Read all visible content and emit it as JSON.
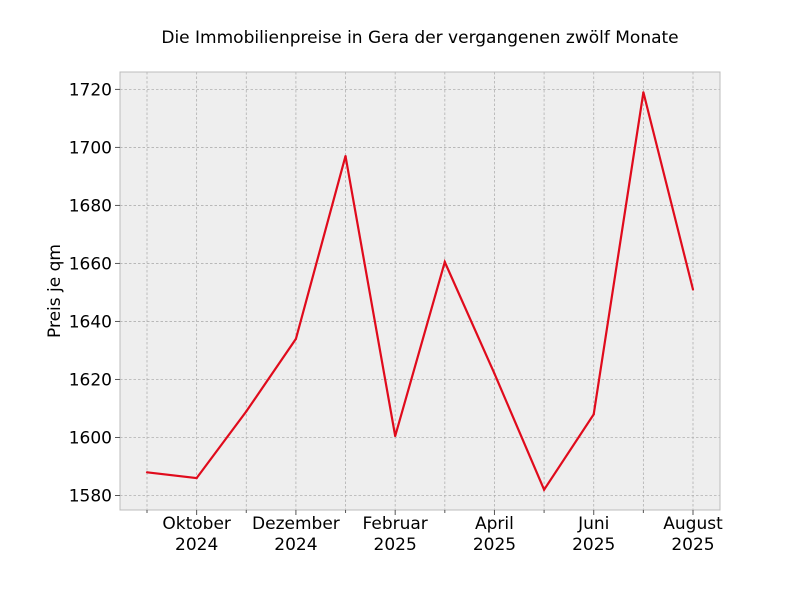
{
  "chart_data": {
    "type": "line",
    "title": "Die Immobilienpreise in Gera der vergangenen zwölf Monate",
    "xlabel": "",
    "ylabel": "Preis je qm",
    "x": [
      "2024-09",
      "2024-10",
      "2024-11",
      "2024-12",
      "2025-01",
      "2025-02",
      "2025-03",
      "2025-04",
      "2025-05",
      "2025-06",
      "2025-07",
      "2025-08"
    ],
    "series": [
      {
        "values": [
          1588,
          1586,
          1609,
          1634,
          1697,
          1600.5,
          1660.5,
          1622,
          1582,
          1608,
          1719,
          1651
        ]
      }
    ],
    "ylim": [
      1575,
      1726
    ],
    "yticks": [
      1580,
      1600,
      1620,
      1640,
      1660,
      1680,
      1700,
      1720
    ],
    "xtick_labels": [
      {
        "x": "2024-10",
        "line1": "Oktober",
        "line2": "2024"
      },
      {
        "x": "2024-12",
        "line1": "Dezember",
        "line2": "2024"
      },
      {
        "x": "2025-02",
        "line1": "Februar",
        "line2": "2025"
      },
      {
        "x": "2025-04",
        "line1": "April",
        "line2": "2025"
      },
      {
        "x": "2025-06",
        "line1": "Juni",
        "line2": "2025"
      },
      {
        "x": "2025-08",
        "line1": "August",
        "line2": "2025"
      }
    ],
    "grid": true,
    "colors": {
      "line": "#e00b1c",
      "background": "#eeeeee",
      "grid": "#b0b0b0",
      "frame": "#bcbcbc"
    }
  }
}
